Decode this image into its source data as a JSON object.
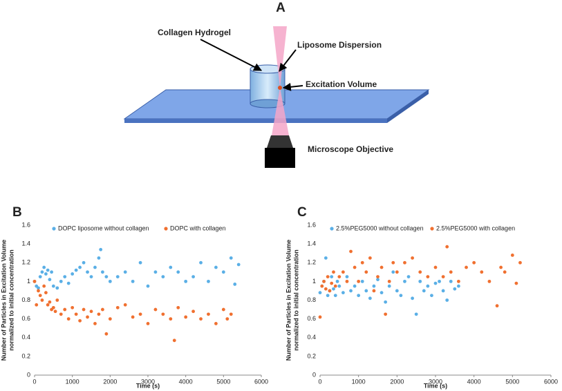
{
  "diagram": {
    "panel_label": "A",
    "labels": [
      "Collagen Hydrogel",
      "Liposome Dispersion",
      "Excitation Volume",
      "Microscope Objective"
    ]
  },
  "chart_data": [
    {
      "type": "scatter",
      "panel_label": "B",
      "xlabel": "Time (s)",
      "ylabel": [
        "Number of Particles in Excitation Volume",
        "normalized to initial concentration"
      ],
      "xlim": [
        0,
        6000
      ],
      "xticks": [
        0,
        1000,
        2000,
        3000,
        4000,
        5000,
        6000
      ],
      "ylim": [
        0,
        1.6
      ],
      "yticks": [
        0,
        0.2,
        0.4,
        0.6,
        0.8,
        1,
        1.2,
        1.4,
        1.6
      ],
      "grid": false,
      "legend": "top-left",
      "series": [
        {
          "name": "DOPC liposome without collagen",
          "color": "#5aafe6",
          "x": [
            0,
            50,
            100,
            150,
            200,
            250,
            300,
            350,
            400,
            450,
            500,
            600,
            700,
            800,
            900,
            1000,
            1100,
            1200,
            1300,
            1400,
            1500,
            1600,
            1700,
            1750,
            1800,
            1900,
            2000,
            2200,
            2400,
            2600,
            2800,
            3000,
            3200,
            3400,
            3600,
            3800,
            4000,
            4200,
            4400,
            4600,
            4800,
            5000,
            5200,
            5300,
            5400
          ],
          "values": [
            1.0,
            0.95,
            0.93,
            1.05,
            1.1,
            1.15,
            1.08,
            1.12,
            1.02,
            1.1,
            0.95,
            0.93,
            1.0,
            1.05,
            0.98,
            1.08,
            1.12,
            1.15,
            1.2,
            1.1,
            1.05,
            1.15,
            1.25,
            1.34,
            1.1,
            1.05,
            1.0,
            1.05,
            1.1,
            1.0,
            1.2,
            0.95,
            1.1,
            1.05,
            1.15,
            1.1,
            1.0,
            1.05,
            1.2,
            1.0,
            1.15,
            1.1,
            1.25,
            0.97,
            1.18
          ]
        },
        {
          "name": "DOPC with collagen",
          "color": "#f07030",
          "x": [
            0,
            50,
            100,
            150,
            200,
            250,
            300,
            350,
            400,
            450,
            500,
            550,
            600,
            700,
            800,
            900,
            1000,
            1100,
            1200,
            1300,
            1400,
            1500,
            1600,
            1700,
            1800,
            1900,
            2000,
            2200,
            2400,
            2600,
            2800,
            3000,
            3200,
            3400,
            3600,
            3700,
            3800,
            4000,
            4200,
            4400,
            4600,
            4800,
            5000,
            5100,
            5200
          ],
          "values": [
            1.0,
            0.75,
            0.9,
            0.85,
            0.8,
            0.95,
            0.88,
            0.75,
            0.78,
            0.7,
            0.72,
            0.68,
            0.8,
            0.65,
            0.7,
            0.6,
            0.72,
            0.65,
            0.58,
            0.7,
            0.62,
            0.68,
            0.55,
            0.65,
            0.7,
            0.44,
            0.6,
            0.72,
            0.75,
            0.62,
            0.65,
            0.55,
            0.7,
            0.65,
            0.6,
            0.37,
            0.72,
            0.62,
            0.68,
            0.6,
            0.65,
            0.55,
            0.7,
            0.6,
            0.65
          ]
        }
      ]
    },
    {
      "type": "scatter",
      "panel_label": "C",
      "xlabel": "Time (s)",
      "ylabel": [
        "Number of Particles in Excitation Volume",
        "normalized to initial concentration"
      ],
      "xlim": [
        0,
        6000
      ],
      "xticks": [
        0,
        1000,
        2000,
        3000,
        4000,
        5000,
        6000
      ],
      "ylim": [
        0,
        1.6
      ],
      "yticks": [
        0,
        0.2,
        0.4,
        0.6,
        0.8,
        1,
        1.2,
        1.4,
        1.6
      ],
      "grid": false,
      "legend": "top-left",
      "series": [
        {
          "name": "2.5%PEG5000 without collagen",
          "color": "#5aafe6",
          "x": [
            0,
            50,
            100,
            150,
            200,
            250,
            300,
            350,
            400,
            450,
            500,
            600,
            700,
            800,
            900,
            1000,
            1100,
            1200,
            1300,
            1400,
            1500,
            1600,
            1700,
            1800,
            1900,
            2000,
            2100,
            2200,
            2300,
            2400,
            2500,
            2600,
            2700,
            2800,
            2900,
            3000,
            3100,
            3200,
            3300,
            3400,
            3500,
            3600
          ],
          "values": [
            0.88,
            0.95,
            1.0,
            1.25,
            0.85,
            0.9,
            1.05,
            0.92,
            0.85,
            1.0,
            0.95,
            0.88,
            1.05,
            0.9,
            0.95,
            0.85,
            1.0,
            0.9,
            0.82,
            0.95,
            1.02,
            0.88,
            0.78,
            0.95,
            1.1,
            0.9,
            0.85,
            1.0,
            1.05,
            0.82,
            0.65,
            1.0,
            0.9,
            0.95,
            0.85,
            0.98,
            1.0,
            0.9,
            0.8,
            1.0,
            0.92,
            0.95
          ]
        },
        {
          "name": "2.5%PEG5000 with collagen",
          "color": "#f07030",
          "x": [
            0,
            50,
            100,
            150,
            200,
            250,
            300,
            350,
            400,
            500,
            600,
            700,
            800,
            900,
            1000,
            1100,
            1200,
            1300,
            1400,
            1500,
            1600,
            1700,
            1800,
            1900,
            2000,
            2200,
            2400,
            2600,
            2800,
            3000,
            3200,
            3300,
            3400,
            3600,
            3800,
            4000,
            4200,
            4400,
            4600,
            4700,
            4800,
            5000,
            5100,
            5200
          ],
          "values": [
            0.62,
            0.95,
            1.0,
            0.92,
            1.05,
            0.9,
            0.98,
            1.1,
            0.95,
            1.05,
            1.1,
            1.0,
            1.32,
            1.15,
            1.0,
            1.2,
            1.1,
            1.25,
            0.9,
            1.05,
            1.15,
            0.65,
            1.0,
            1.2,
            1.1,
            1.2,
            1.25,
            1.1,
            1.05,
            1.15,
            1.05,
            1.37,
            1.1,
            1.0,
            1.15,
            1.2,
            1.1,
            1.0,
            0.74,
            1.15,
            1.1,
            1.28,
            0.98,
            1.2
          ]
        }
      ]
    }
  ]
}
